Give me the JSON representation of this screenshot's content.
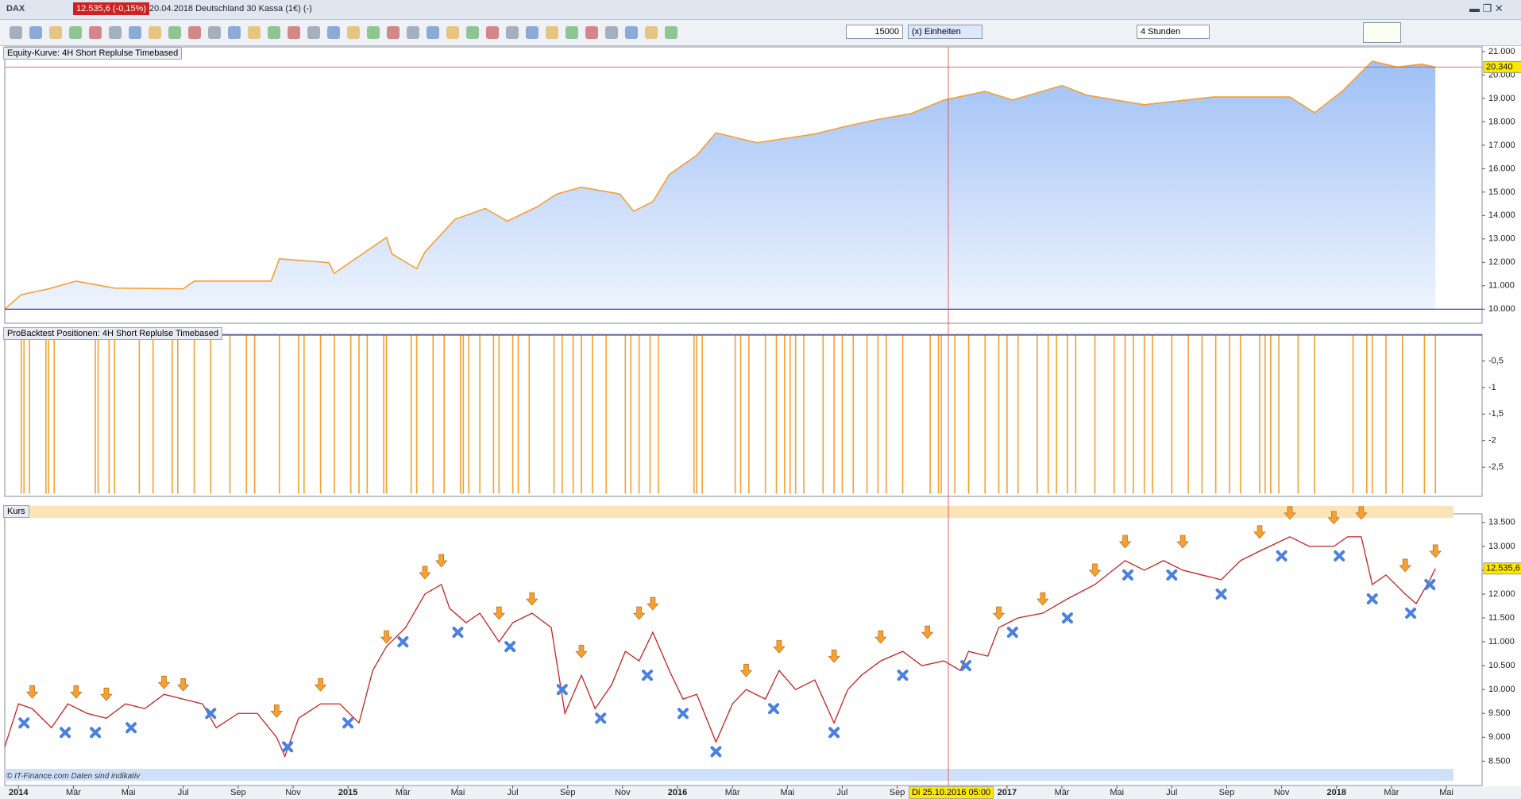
{
  "window": {
    "symbol": "DAX",
    "quote": "12.535,6 (-0,15%)",
    "description": "20.04.2018 Deutschland 30 Kassa (1€) (-)"
  },
  "toolbar": {
    "quantity": "15000",
    "unit": "(x) Einheiten",
    "timeframe": "4 Stunden"
  },
  "cursor_label": "Di 25.10.2016 05:00",
  "watermark": "© IT-Finance.com  Daten sind indikativ",
  "chart_data": [
    {
      "type": "area",
      "title": "Equity-Kurve: 4H Short Replulse Timebased",
      "color": "#f5a030",
      "fill": "#9fc0f5",
      "reference_value": 10000,
      "reference_color": "#2030c0",
      "last_value": {
        "value": 20340,
        "label": "20.340"
      },
      "last_color": "#e04040",
      "xlim": [
        -0.5,
        53.3
      ],
      "ylim": [
        9400,
        21200
      ],
      "yticks": [
        {
          "value": 10000,
          "label": "10.000"
        },
        {
          "value": 11000,
          "label": "11.000"
        },
        {
          "value": 12000,
          "label": "12.000"
        },
        {
          "value": 13000,
          "label": "13.000"
        },
        {
          "value": 14000,
          "label": "14.000"
        },
        {
          "value": 15000,
          "label": "15.000"
        },
        {
          "value": 16000,
          "label": "16.000"
        },
        {
          "value": 17000,
          "label": "17.000"
        },
        {
          "value": 18000,
          "label": "18.000"
        },
        {
          "value": 19000,
          "label": "19.000"
        },
        {
          "value": 20000,
          "label": "20.000"
        },
        {
          "value": 21000,
          "label": "21.000"
        }
      ],
      "x": [
        -0.5,
        0.1,
        1.1,
        2.1,
        3.5,
        6.0,
        6.4,
        9.2,
        9.5,
        11.3,
        11.5,
        12.2,
        13.4,
        13.6,
        14.5,
        14.8,
        15.9,
        17.0,
        17.8,
        18.9,
        19.6,
        20.5,
        21.9,
        22.4,
        23.1,
        23.7,
        24.7,
        25.4,
        26.9,
        29.0,
        30.0,
        31.1,
        32.5,
        33.7,
        35.2,
        36.2,
        38.0,
        38.9,
        41.0,
        43.5,
        46.3,
        47.2,
        48.2,
        49.3,
        50.2,
        51.1,
        51.6
      ],
      "values": [
        10000,
        10620,
        10870,
        11200,
        10900,
        10870,
        11200,
        11200,
        12150,
        11990,
        11530,
        12100,
        13060,
        12360,
        11730,
        12440,
        13840,
        14300,
        13760,
        14380,
        14920,
        15210,
        14920,
        14180,
        14590,
        15750,
        16570,
        17530,
        17110,
        17480,
        17770,
        18060,
        18350,
        18930,
        19300,
        18930,
        19550,
        19140,
        18730,
        19060,
        19060,
        18390,
        19300,
        20590,
        20340,
        20460,
        20340
      ]
    },
    {
      "type": "bar",
      "title": "ProBacktest Positionen: 4H Short Replulse Timebased",
      "color": "#f5a030",
      "xlim": [
        -0.5,
        53.3
      ],
      "ylim": [
        -3.05,
        0
      ],
      "yticks": [
        {
          "value": -0.5,
          "label": "-0,5"
        },
        -1,
        {
          "value": -1.5,
          "label": "-1,5"
        },
        -2,
        {
          "value": -2.5,
          "label": "-2,5"
        }
      ],
      "x": [
        0.1,
        0.2,
        0.4,
        1.0,
        1.1,
        1.3,
        2.8,
        2.9,
        3.3,
        3.5,
        4.4,
        4.9,
        5.6,
        5.8,
        6.4,
        7.0,
        7.7,
        8.3,
        8.6,
        9.5,
        10.2,
        10.4,
        11.0,
        11.5,
        12.1,
        12.4,
        12.7,
        13.3,
        13.4,
        14.3,
        14.5,
        15.1,
        15.5,
        16.1,
        16.2,
        16.4,
        16.8,
        17.3,
        17.5,
        18.0,
        18.2,
        18.6,
        19.5,
        19.8,
        20.2,
        20.5,
        20.9,
        21.4,
        22.1,
        22.3,
        22.6,
        23.0,
        23.3,
        24.6,
        24.7,
        24.9,
        26.1,
        26.3,
        26.6,
        27.2,
        27.6,
        27.9,
        28.1,
        28.3,
        28.6,
        29.3,
        29.7,
        30.0,
        30.4,
        30.9,
        31.3,
        31.6,
        32.2,
        33.2,
        33.5,
        33.6,
        34.1,
        34.6,
        35.2,
        35.7,
        36.0,
        36.4,
        37.1,
        37.5,
        37.8,
        38.2,
        38.5,
        39.2,
        39.9,
        40.3,
        40.6,
        41.0,
        41.3,
        42.0,
        42.6,
        43.1,
        43.6,
        44.1,
        44.5,
        45.2,
        45.4,
        45.6,
        45.9,
        46.6,
        47.2,
        48.6,
        49.1,
        49.3,
        49.8,
        50.4,
        51.2,
        51.6
      ],
      "values": [
        -3,
        -3,
        -3,
        -3,
        -3,
        -3,
        -3,
        -3,
        -3,
        -3,
        -3,
        -3,
        -3,
        -3,
        -3,
        -3,
        -3,
        -3,
        -3,
        -3,
        -3,
        -3,
        -3,
        -3,
        -3,
        -3,
        -3,
        -3,
        -3,
        -3,
        -3,
        -3,
        -3,
        -3,
        -3,
        -3,
        -3,
        -3,
        -3,
        -3,
        -3,
        -3,
        -3,
        -3,
        -3,
        -3,
        -3,
        -3,
        -3,
        -3,
        -3,
        -3,
        -3,
        -3,
        -3,
        -3,
        -3,
        -3,
        -3,
        -3,
        -3,
        -3,
        -3,
        -3,
        -3,
        -3,
        -3,
        -3,
        -3,
        -3,
        -3,
        -3,
        -3,
        -3,
        -3,
        -3,
        -3,
        -3,
        -3,
        -3,
        -3,
        -3,
        -3,
        -3,
        -3,
        -3,
        -3,
        -3,
        -3,
        -3,
        -3,
        -3,
        -3,
        -3,
        -3,
        -3,
        -3,
        -3,
        -3,
        -3,
        -3,
        -3,
        -3,
        -3,
        -3,
        -3,
        -3,
        -3,
        -3,
        -3,
        -3,
        -3
      ]
    },
    {
      "type": "line",
      "title": "Kurs",
      "color": "#c82020",
      "last_value": {
        "value": 12535.6,
        "label": "12.535,6"
      },
      "xlim": [
        -0.5,
        53.3
      ],
      "ylim": [
        7990,
        13680
      ],
      "yticks": [
        {
          "value": 8500,
          "label": "8.500"
        },
        {
          "value": 9000,
          "label": "9.000"
        },
        {
          "value": 9500,
          "label": "9.500"
        },
        {
          "value": 10000,
          "label": "10.000"
        },
        {
          "value": 10500,
          "label": "10.500"
        },
        {
          "value": 11000,
          "label": "11.000"
        },
        {
          "value": 11500,
          "label": "11.500"
        },
        {
          "value": 12000,
          "label": "12.000"
        },
        {
          "value": 12500,
          "label": "12.500"
        },
        {
          "value": 13000,
          "label": "13.000"
        },
        {
          "value": 13500,
          "label": "13.500"
        }
      ],
      "xticks": [
        {
          "value": 0,
          "label": "2014"
        },
        {
          "value": 2,
          "label": "Mär"
        },
        {
          "value": 4,
          "label": "Mai"
        },
        {
          "value": 6,
          "label": "Jul"
        },
        {
          "value": 8,
          "label": "Sep"
        },
        {
          "value": 10,
          "label": "Nov"
        },
        {
          "value": 12,
          "label": "2015"
        },
        {
          "value": 14,
          "label": "Mär"
        },
        {
          "value": 16,
          "label": "Mai"
        },
        {
          "value": 18,
          "label": "Jul"
        },
        {
          "value": 20,
          "label": "Sep"
        },
        {
          "value": 22,
          "label": "Nov"
        },
        {
          "value": 24,
          "label": "2016"
        },
        {
          "value": 26,
          "label": "Mär"
        },
        {
          "value": 28,
          "label": "Mai"
        },
        {
          "value": 30,
          "label": "Jul"
        },
        {
          "value": 32,
          "label": "Sep"
        },
        {
          "value": 36,
          "label": "2017"
        },
        {
          "value": 38,
          "label": "Mär"
        },
        {
          "value": 40,
          "label": "Mai"
        },
        {
          "value": 42,
          "label": "Jul"
        },
        {
          "value": 44,
          "label": "Sep"
        },
        {
          "value": 46,
          "label": "Nov"
        },
        {
          "value": 48,
          "label": "2018"
        },
        {
          "value": 50,
          "label": "Mär"
        },
        {
          "value": 52,
          "label": "Mai"
        }
      ],
      "x": [
        -0.5,
        0,
        0.5,
        1.2,
        1.8,
        2.5,
        3.2,
        3.9,
        4.6,
        5.3,
        6.0,
        6.7,
        7.2,
        8.0,
        8.7,
        9.4,
        9.7,
        10.2,
        11.0,
        11.7,
        12.4,
        12.9,
        13.4,
        14.1,
        14.8,
        15.4,
        15.7,
        16.3,
        16.8,
        17.5,
        18.0,
        18.7,
        19.4,
        19.9,
        20.5,
        21.0,
        21.6,
        22.1,
        22.6,
        23.1,
        23.7,
        24.2,
        24.7,
        25.4,
        26.0,
        26.5,
        27.2,
        27.7,
        28.3,
        29.0,
        29.7,
        30.2,
        30.7,
        31.4,
        32.2,
        32.9,
        33.7,
        34.3,
        34.6,
        35.3,
        35.7,
        36.4,
        37.3,
        38.2,
        39.2,
        40.3,
        41.0,
        41.7,
        42.4,
        43.1,
        43.8,
        44.5,
        45.2,
        46.3,
        47.0,
        47.9,
        48.4,
        48.9,
        49.3,
        49.8,
        50.5,
        50.9,
        51.4,
        51.6
      ],
      "values": [
        8800,
        9700,
        9600,
        9200,
        9700,
        9500,
        9400,
        9700,
        9600,
        9900,
        9800,
        9700,
        9200,
        9500,
        9500,
        9000,
        8600,
        9400,
        9700,
        9700,
        9300,
        10400,
        10900,
        11300,
        12000,
        12200,
        11700,
        11400,
        11600,
        11000,
        11400,
        11600,
        11300,
        9500,
        10300,
        9600,
        10100,
        10800,
        10600,
        11200,
        10400,
        9800,
        9900,
        8900,
        9700,
        10000,
        9800,
        10400,
        10000,
        10200,
        9300,
        10000,
        10300,
        10600,
        10800,
        10500,
        10600,
        10400,
        10800,
        10700,
        11300,
        11500,
        11600,
        11900,
        12200,
        12700,
        12500,
        12700,
        12500,
        12400,
        12300,
        12700,
        12900,
        13200,
        13000,
        13000,
        13200,
        13200,
        12200,
        12400,
        12000,
        11800,
        12300,
        12535.6
      ],
      "sell": {
        "color": "#f5a030",
        "x": [
          0.5,
          2.1,
          3.2,
          5.3,
          6.0,
          9.4,
          11.0,
          13.4,
          14.8,
          15.4,
          17.5,
          18.7,
          20.5,
          22.6,
          23.1,
          26.5,
          27.7,
          29.7,
          31.4,
          33.1,
          35.7,
          37.3,
          39.2,
          40.3,
          42.4,
          45.2,
          46.3,
          47.9,
          48.9,
          50.5,
          51.6
        ],
        "values": [
          9750,
          9750,
          9700,
          9950,
          9900,
          9350,
          9900,
          10900,
          12250,
          12500,
          11400,
          11700,
          10600,
          11400,
          11600,
          10200,
          10700,
          10500,
          10900,
          11000,
          11400,
          11700,
          12300,
          12900,
          12900,
          13100,
          13500,
          13400,
          13500,
          12400,
          12700
        ]
      },
      "buy": {
        "color": "#4a80e0",
        "x": [
          0.2,
          1.7,
          2.8,
          4.1,
          7.0,
          9.8,
          12.0,
          14.0,
          16.0,
          17.9,
          19.8,
          21.2,
          22.9,
          24.2,
          25.4,
          27.5,
          29.7,
          32.2,
          34.5,
          36.2,
          38.2,
          40.4,
          42.0,
          43.8,
          46.0,
          48.1,
          49.3,
          50.7,
          51.4
        ],
        "values": [
          9300,
          9100,
          9100,
          9200,
          9500,
          8800,
          9300,
          11000,
          11200,
          10900,
          10000,
          9400,
          10300,
          9500,
          8700,
          9600,
          9100,
          10300,
          10500,
          11200,
          11500,
          12400,
          12400,
          12000,
          12800,
          12800,
          11900,
          11600,
          12200
        ]
      }
    }
  ]
}
